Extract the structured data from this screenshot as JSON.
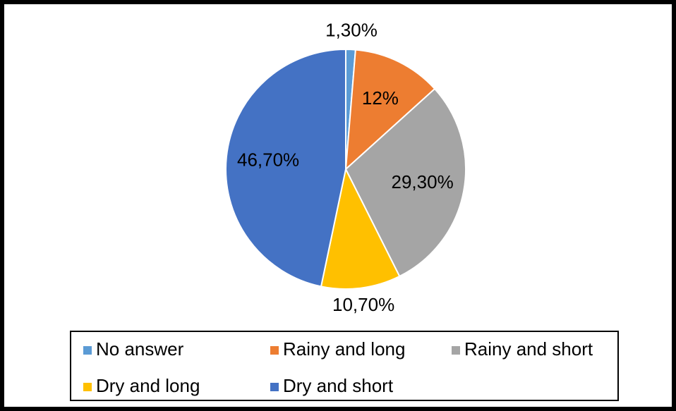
{
  "chart_data": {
    "type": "pie",
    "categories": [
      "No answer",
      "Rainy and long",
      "Rainy and short",
      "Dry and long",
      "Dry and short"
    ],
    "values": [
      1.3,
      12,
      29.3,
      10.7,
      46.7
    ],
    "value_labels": [
      "1,30%",
      "12%",
      "29,30%",
      "10,70%",
      "46,70%"
    ],
    "colors": [
      "#5b9bd5",
      "#ed7d31",
      "#a5a5a5",
      "#ffc000",
      "#4472c4"
    ],
    "legend": "bottom"
  }
}
